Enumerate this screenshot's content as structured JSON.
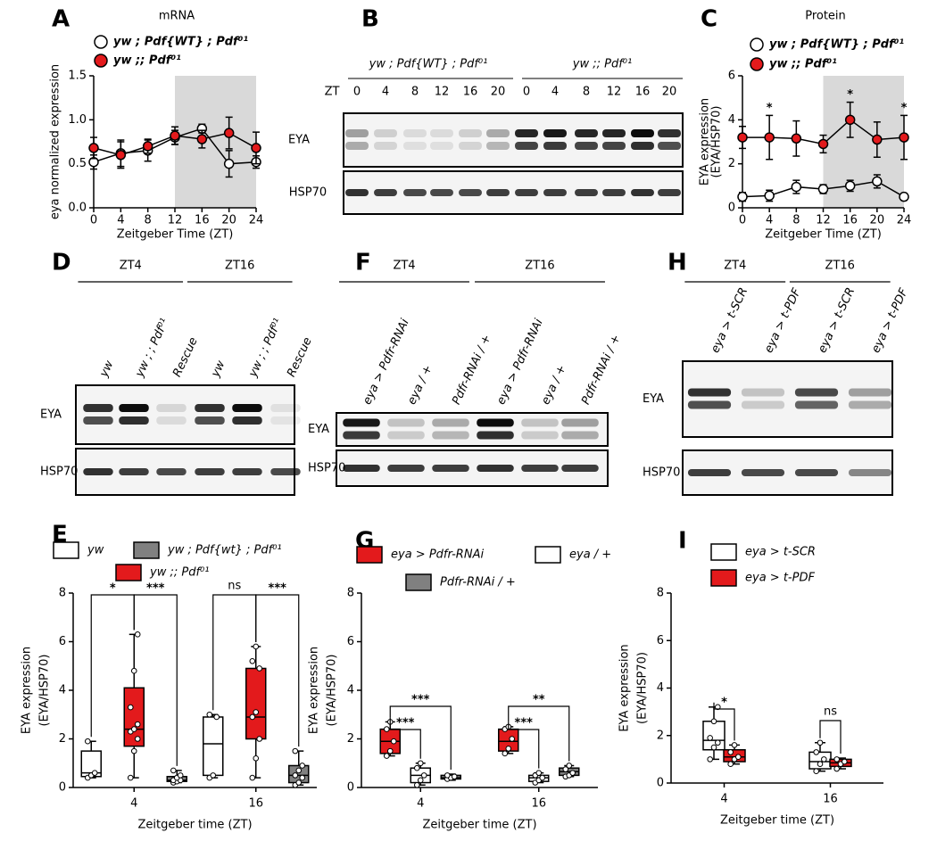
{
  "chart_data": [
    {
      "type": "line",
      "panel": "A",
      "title": "mRNA",
      "ylabel": [
        "eya normalized expression"
      ],
      "xlabel": "Zeitgeber Time (ZT)",
      "x": [
        0,
        4,
        8,
        12,
        16,
        20,
        24
      ],
      "xlim": [
        0,
        24
      ],
      "xticks": [
        0,
        4,
        8,
        12,
        16,
        20,
        24
      ],
      "ylim": [
        0,
        1.5
      ],
      "yticks": [
        {
          "value": 0,
          "label": "0.0"
        },
        {
          "value": 0.5,
          "label": "0.5"
        },
        {
          "value": 1,
          "label": "1.0"
        },
        {
          "value": 1.5,
          "label": "1.5"
        }
      ],
      "shade": [
        12,
        24
      ],
      "series": [
        {
          "name": "yw ; Pdf{WT} ; Pdf⁰¹",
          "color": "#ffffff",
          "values": [
            0.52,
            0.62,
            0.65,
            0.8,
            0.9,
            0.5,
            0.52
          ],
          "errors": [
            0.08,
            0.15,
            0.12,
            0.08,
            0.05,
            0.15,
            0.07
          ]
        },
        {
          "name": "yw ;; Pdf⁰¹",
          "color": "#e31a1c",
          "values": [
            0.68,
            0.6,
            0.7,
            0.82,
            0.78,
            0.85,
            0.68
          ],
          "errors": [
            0.12,
            0.15,
            0.08,
            0.1,
            0.1,
            0.18,
            0.18
          ]
        }
      ]
    },
    {
      "type": "line",
      "panel": "C",
      "title": "Protein",
      "ylabel": [
        "EYA expression",
        "(EYA/HSP70)"
      ],
      "xlabel": "Zeitgeber Time (ZT)",
      "x": [
        0,
        4,
        8,
        12,
        16,
        20,
        24
      ],
      "xlim": [
        0,
        24
      ],
      "xticks": [
        0,
        4,
        8,
        12,
        16,
        20,
        24
      ],
      "ylim": [
        0,
        6
      ],
      "yticks": [
        0,
        2,
        4,
        6
      ],
      "shade": [
        12,
        24
      ],
      "series": [
        {
          "name": "yw ; Pdf{WT} ; Pdf⁰¹",
          "color": "#ffffff",
          "values": [
            0.5,
            0.55,
            0.95,
            0.85,
            1.0,
            1.2,
            0.5
          ],
          "errors": [
            0.2,
            0.25,
            0.3,
            0.2,
            0.25,
            0.3,
            0.15
          ]
        },
        {
          "name": "yw ;; Pdf⁰¹",
          "color": "#e31a1c",
          "values": [
            3.2,
            3.2,
            3.15,
            2.9,
            4.0,
            3.1,
            3.2
          ],
          "errors": [
            0.5,
            1.0,
            0.8,
            0.4,
            0.8,
            0.8,
            1.0
          ]
        }
      ],
      "annotations": [
        {
          "x": 4,
          "text": "*"
        },
        {
          "x": 16,
          "text": "*"
        },
        {
          "x": 24,
          "text": "*"
        }
      ]
    },
    {
      "type": "box",
      "panel": "E",
      "ylabel": [
        "EYA expression",
        "(EYA/HSP70)"
      ],
      "xlabel": "Zeitgeber time (ZT)",
      "categories": [
        "4",
        "16"
      ],
      "ylim": [
        0,
        8
      ],
      "yticks": [
        0,
        2,
        4,
        6,
        8
      ],
      "series": [
        {
          "name": "yw",
          "color": "#ffffff",
          "boxes": [
            {
              "min": 0.4,
              "q1": 0.45,
              "median": 0.6,
              "q3": 1.5,
              "max": 1.9,
              "points": [
                0.4,
                0.5,
                0.6,
                1.9
              ]
            },
            {
              "min": 0.4,
              "q1": 0.5,
              "median": 1.8,
              "q3": 2.9,
              "max": 3.0,
              "points": [
                0.4,
                0.5,
                2.9,
                3.0
              ]
            }
          ]
        },
        {
          "name": "yw ;; Pdf⁰¹",
          "color": "#e31a1c",
          "boxes": [
            {
              "min": 0.4,
              "q1": 1.7,
              "median": 2.4,
              "q3": 4.1,
              "max": 6.3,
              "points": [
                0.4,
                1.5,
                2.0,
                2.3,
                2.4,
                2.6,
                3.3,
                4.8,
                6.3
              ]
            },
            {
              "min": 0.4,
              "q1": 2.0,
              "median": 2.9,
              "q3": 4.9,
              "max": 5.8,
              "points": [
                0.4,
                1.2,
                2.0,
                2.9,
                3.1,
                4.9,
                5.2,
                5.8
              ]
            }
          ]
        },
        {
          "name": "yw ; Pdf{wt} ; Pdf⁰¹",
          "color": "#808080",
          "boxes": [
            {
              "min": 0.2,
              "q1": 0.25,
              "median": 0.3,
              "q3": 0.45,
              "max": 0.7,
              "points": [
                0.2,
                0.25,
                0.3,
                0.3,
                0.4,
                0.5,
                0.7
              ]
            },
            {
              "min": 0.1,
              "q1": 0.2,
              "median": 0.5,
              "q3": 0.9,
              "max": 1.5,
              "points": [
                0.1,
                0.2,
                0.4,
                0.5,
                0.7,
                0.9,
                1.5
              ]
            }
          ]
        }
      ],
      "brackets": [
        [
          "*",
          "***"
        ],
        [
          "ns",
          "***"
        ]
      ]
    },
    {
      "type": "box",
      "panel": "G",
      "ylabel": [
        "EYA expression",
        "(EYA/HSP70)"
      ],
      "xlabel": "Zeitgeber time (ZT)",
      "categories": [
        "4",
        "16"
      ],
      "ylim": [
        0,
        8
      ],
      "yticks": [
        0,
        2,
        4,
        6,
        8
      ],
      "series": [
        {
          "name": "eya > Pdfr-RNAi",
          "color": "#e31a1c",
          "boxes": [
            {
              "min": 1.3,
              "q1": 1.4,
              "median": 1.9,
              "q3": 2.4,
              "max": 2.7,
              "points": [
                1.3,
                1.5,
                1.9,
                2.4,
                2.7
              ]
            },
            {
              "min": 1.4,
              "q1": 1.5,
              "median": 1.9,
              "q3": 2.4,
              "max": 2.5,
              "points": [
                1.4,
                1.6,
                2.0,
                2.4,
                2.5
              ]
            }
          ]
        },
        {
          "name": "eya / +",
          "color": "#ffffff",
          "boxes": [
            {
              "min": 0.1,
              "q1": 0.2,
              "median": 0.5,
              "q3": 0.8,
              "max": 1.0,
              "points": [
                0.1,
                0.3,
                0.5,
                0.8,
                1.0
              ]
            },
            {
              "min": 0.2,
              "q1": 0.25,
              "median": 0.4,
              "q3": 0.5,
              "max": 0.6,
              "points": [
                0.2,
                0.3,
                0.4,
                0.5,
                0.6
              ]
            }
          ]
        },
        {
          "name": "Pdfr-RNAi / +",
          "color": "#808080",
          "boxes": [
            {
              "min": 0.3,
              "q1": 0.35,
              "median": 0.4,
              "q3": 0.5,
              "max": 0.55,
              "points": [
                0.35,
                0.4,
                0.45,
                0.5
              ]
            },
            {
              "min": 0.45,
              "q1": 0.5,
              "median": 0.65,
              "q3": 0.8,
              "max": 0.9,
              "points": [
                0.45,
                0.5,
                0.6,
                0.75,
                0.9
              ]
            }
          ]
        }
      ],
      "brackets": [
        [
          "***",
          "***"
        ],
        [
          "***",
          "**"
        ]
      ]
    },
    {
      "type": "box",
      "panel": "I",
      "ylabel": [
        "EYA expression",
        "(EYA/HSP70)"
      ],
      "xlabel": "Zeitgeber time (ZT)",
      "categories": [
        "4",
        "16"
      ],
      "ylim": [
        0,
        8
      ],
      "yticks": [
        0,
        2,
        4,
        6,
        8
      ],
      "series": [
        {
          "name": "eya > t-SCR",
          "color": "#ffffff",
          "boxes": [
            {
              "min": 1.0,
              "q1": 1.4,
              "median": 1.8,
              "q3": 2.6,
              "max": 3.2,
              "points": [
                1.0,
                1.5,
                1.7,
                1.9,
                2.6,
                3.2
              ]
            },
            {
              "min": 0.5,
              "q1": 0.6,
              "median": 0.9,
              "q3": 1.3,
              "max": 1.7,
              "points": [
                0.5,
                0.8,
                1.0,
                1.3,
                1.7
              ]
            }
          ]
        },
        {
          "name": "eya > t-PDF",
          "color": "#e31a1c",
          "boxes": [
            {
              "min": 0.8,
              "q1": 0.9,
              "median": 1.1,
              "q3": 1.4,
              "max": 1.6,
              "points": [
                0.8,
                1.0,
                1.1,
                1.3,
                1.6
              ]
            },
            {
              "min": 0.6,
              "q1": 0.7,
              "median": 0.85,
              "q3": 1.0,
              "max": 1.05,
              "points": [
                0.6,
                0.8,
                0.9,
                1.0
              ]
            }
          ]
        }
      ],
      "brackets": [
        [
          "*"
        ],
        [
          "ns"
        ]
      ]
    }
  ],
  "blots": [
    {
      "panel": "B",
      "groups": [
        "yw ; Pdf{WT} ; Pdf⁰¹",
        "yw ;; Pdf⁰¹"
      ],
      "lane_title": "ZT",
      "lanes": [
        "0",
        "4",
        "8",
        "12",
        "16",
        "20",
        "0",
        "4",
        "8",
        "12",
        "16",
        "20"
      ],
      "rows": [
        "EYA",
        "HSP70"
      ]
    },
    {
      "panel": "D",
      "groups": [
        "ZT4",
        "ZT16"
      ],
      "lanes": [
        "yw",
        "yw ; ; Pdf⁰¹",
        "Rescue",
        "yw",
        "yw ; ; Pdf⁰¹",
        "Rescue"
      ],
      "rows": [
        "EYA",
        "HSP70"
      ]
    },
    {
      "panel": "F",
      "groups": [
        "ZT4",
        "ZT16"
      ],
      "lanes": [
        "eya > Pdfr-RNAi",
        "eya / +",
        "Pdfr-RNAi / +",
        "eya > Pdfr-RNAi",
        "eya / +",
        "Pdfr-RNAi / +"
      ],
      "rows": [
        "EYA",
        "HSP70"
      ]
    },
    {
      "panel": "H",
      "groups": [
        "ZT4",
        "ZT16"
      ],
      "lanes": [
        "eya > t-SCR",
        "eya > t-PDF",
        "eya > t-SCR",
        "eya > t-PDF"
      ],
      "rows": [
        "EYA",
        "HSP70"
      ]
    }
  ]
}
